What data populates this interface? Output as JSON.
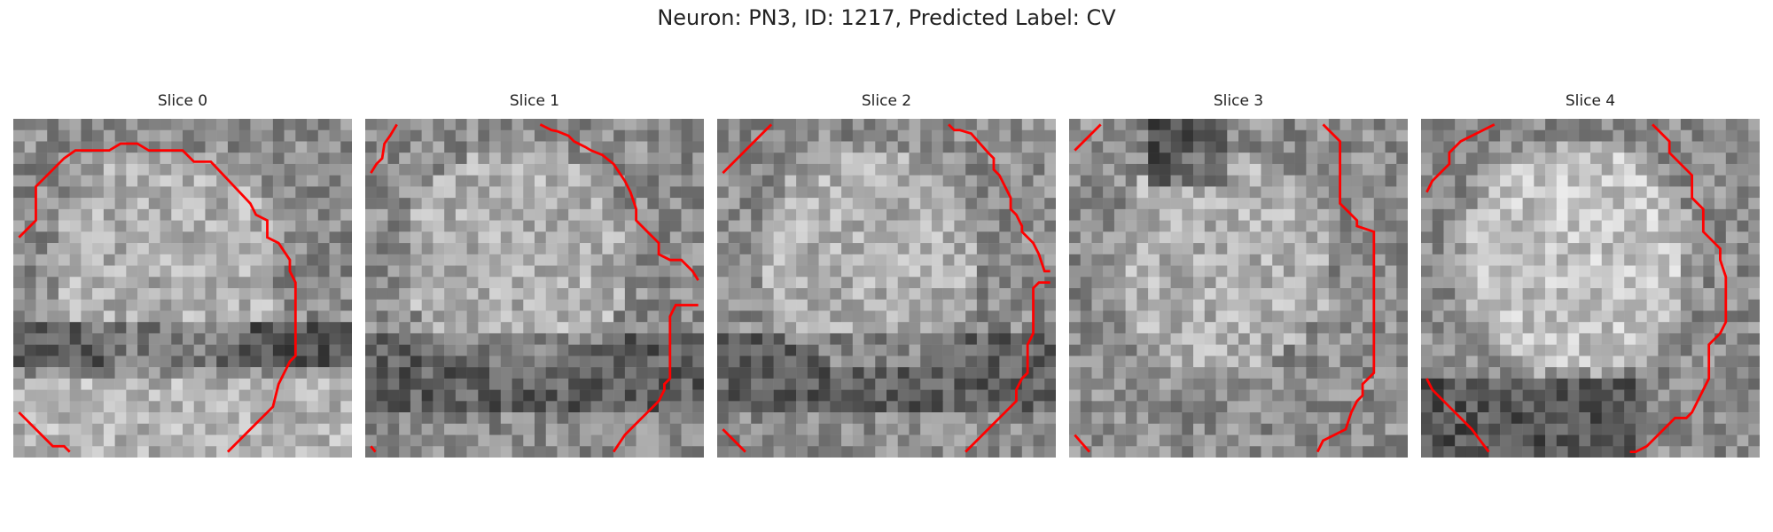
{
  "figure": {
    "title": "Neuron: PN3, ID: 1217, Predicted Label: CV",
    "colormap": "gray",
    "contour_color": "#ff0000"
  },
  "slices": [
    {
      "title": "Slice 0",
      "seed": 11,
      "tone": "bright-left-top",
      "shadow": "lower-band"
    },
    {
      "title": "Slice 1",
      "seed": 23,
      "tone": "mid",
      "shadow": "lower-band"
    },
    {
      "title": "Slice 2",
      "seed": 37,
      "tone": "mid",
      "shadow": "lower-band"
    },
    {
      "title": "Slice 3",
      "seed": 41,
      "tone": "mid-bright",
      "shadow": "top-dark"
    },
    {
      "title": "Slice 4",
      "seed": 53,
      "tone": "bright",
      "shadow": "lower-left"
    }
  ]
}
